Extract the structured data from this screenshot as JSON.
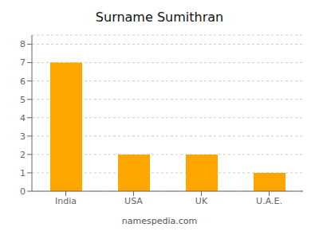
{
  "chart_data": {
    "type": "bar",
    "title": "Surname Sumithran",
    "categories": [
      "India",
      "USA",
      "UK",
      "U.A.E."
    ],
    "values": [
      7,
      2,
      2,
      1
    ],
    "color": "#FFA500",
    "ylim": [
      0,
      8.5
    ],
    "yticks": [
      0,
      1,
      2,
      3,
      4,
      5,
      6,
      7,
      8
    ],
    "grid": true,
    "annotations": [
      "namespedia.com"
    ]
  }
}
